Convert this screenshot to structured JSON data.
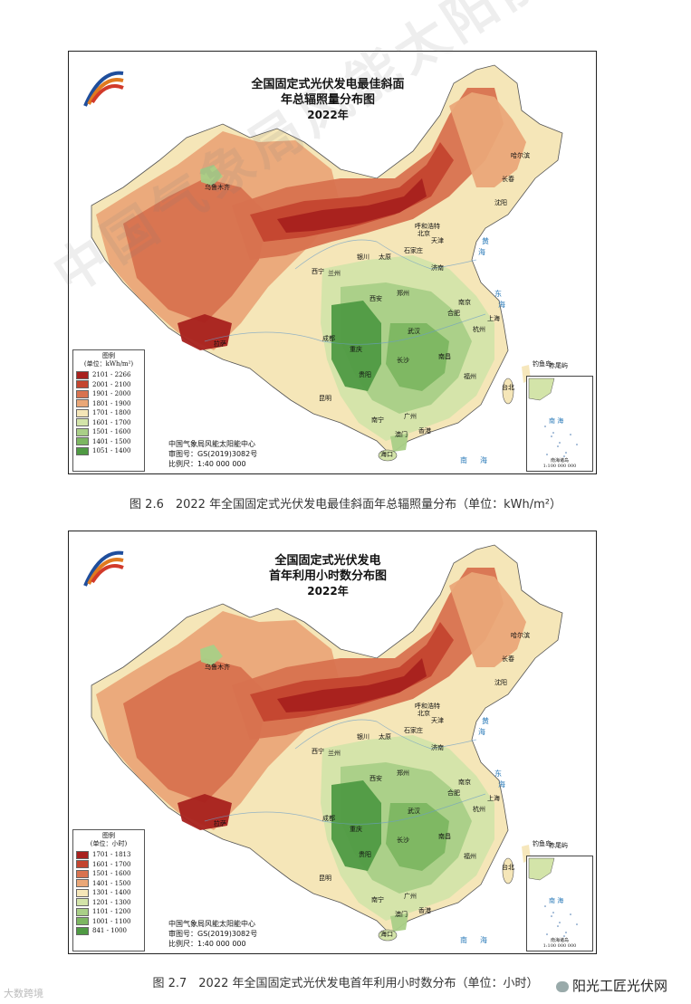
{
  "maps": [
    {
      "title_line1": "全国固定式光伏发电最佳斜面",
      "title_line2": "年总辐照量分布图",
      "year": "2022年",
      "legend": {
        "title": "图例",
        "unit": "(单位：kWh/m²)",
        "classes": [
          {
            "range": "2101 - 2266",
            "color": "#a8211e"
          },
          {
            "range": "2001 - 2100",
            "color": "#c4452f"
          },
          {
            "range": "1901 - 2000",
            "color": "#d8724f"
          },
          {
            "range": "1801 - 1900",
            "color": "#eaa778"
          },
          {
            "range": "1701 - 1800",
            "color": "#f5e6b8"
          },
          {
            "range": "1601 - 1700",
            "color": "#d3e4a9"
          },
          {
            "range": "1501 - 1600",
            "color": "#a9cf87"
          },
          {
            "range": "1401 - 1500",
            "color": "#7cb661"
          },
          {
            "range": "1051 - 1400",
            "color": "#4f9a43"
          }
        ]
      },
      "credit": [
        "中国气象局风能太阳能中心",
        "审图号：GS(2019)3082号",
        "比例尺：1:40 000 000"
      ],
      "inset_label": "南海诸岛\n1:100 000 000",
      "inset_sea": "南 海",
      "sea_labels": [
        "黄",
        "海",
        "东",
        "海",
        "南",
        "海"
      ],
      "cities": [
        "乌鲁木齐",
        "哈尔滨",
        "长春",
        "沈阳",
        "呼和浩特",
        "北京",
        "天津",
        "石家庄",
        "太原",
        "银川",
        "济南",
        "西宁",
        "兰州",
        "郑州",
        "西安",
        "南京",
        "合肥",
        "上海",
        "杭州",
        "武汉",
        "成都",
        "重庆",
        "拉萨",
        "长沙",
        "南昌",
        "福州",
        "台北",
        "贵阳",
        "昆明",
        "南宁",
        "广州",
        "澳门",
        "香港",
        "海口",
        "钓鱼岛",
        "赤尾屿"
      ]
    },
    {
      "title_line1": "全国固定式光伏发电",
      "title_line2": "首年利用小时数分布图",
      "year": "2022年",
      "legend": {
        "title": "图例",
        "unit": "(单位：小时)",
        "classes": [
          {
            "range": "1701 - 1813",
            "color": "#a8211e"
          },
          {
            "range": "1601 - 1700",
            "color": "#c4452f"
          },
          {
            "range": "1501 - 1600",
            "color": "#d8724f"
          },
          {
            "range": "1401 - 1500",
            "color": "#eaa778"
          },
          {
            "range": "1301 - 1400",
            "color": "#f5e6b8"
          },
          {
            "range": "1201 - 1300",
            "color": "#d3e4a9"
          },
          {
            "range": "1101 - 1200",
            "color": "#a9cf87"
          },
          {
            "range": "1001 - 1100",
            "color": "#7cb661"
          },
          {
            "range": "841 - 1000",
            "color": "#4f9a43"
          }
        ]
      },
      "credit": [
        "中国气象局风能太阳能中心",
        "审图号：GS(2019)3082号",
        "比例尺：1:40 000 000"
      ],
      "inset_label": "南海诸岛\n1:100 000 000",
      "inset_sea": "南 海",
      "sea_labels": [
        "黄",
        "海",
        "东",
        "海",
        "南",
        "海"
      ],
      "cities": [
        "乌鲁木齐",
        "哈尔滨",
        "长春",
        "沈阳",
        "呼和浩特",
        "北京",
        "天津",
        "石家庄",
        "太原",
        "银川",
        "济南",
        "西宁",
        "兰州",
        "郑州",
        "西安",
        "南京",
        "合肥",
        "上海",
        "杭州",
        "武汉",
        "成都",
        "重庆",
        "拉萨",
        "长沙",
        "南昌",
        "福州",
        "台北",
        "贵阳",
        "昆明",
        "南宁",
        "广州",
        "澳门",
        "香港",
        "海口",
        "钓鱼岛",
        "赤尾屿"
      ]
    }
  ],
  "captions": [
    "图 2.6　2022 年全国固定式光伏发电最佳斜面年总辐照量分布（单位：kWh/m²）",
    "图 2.7　2022 年全国固定式光伏发电首年利用小时数分布（单位：小时）"
  ],
  "watermark": "中国气象局风能太阳能中心",
  "watermark_left": "大数跨境",
  "watermark_right": "阳光工匠光伏网"
}
